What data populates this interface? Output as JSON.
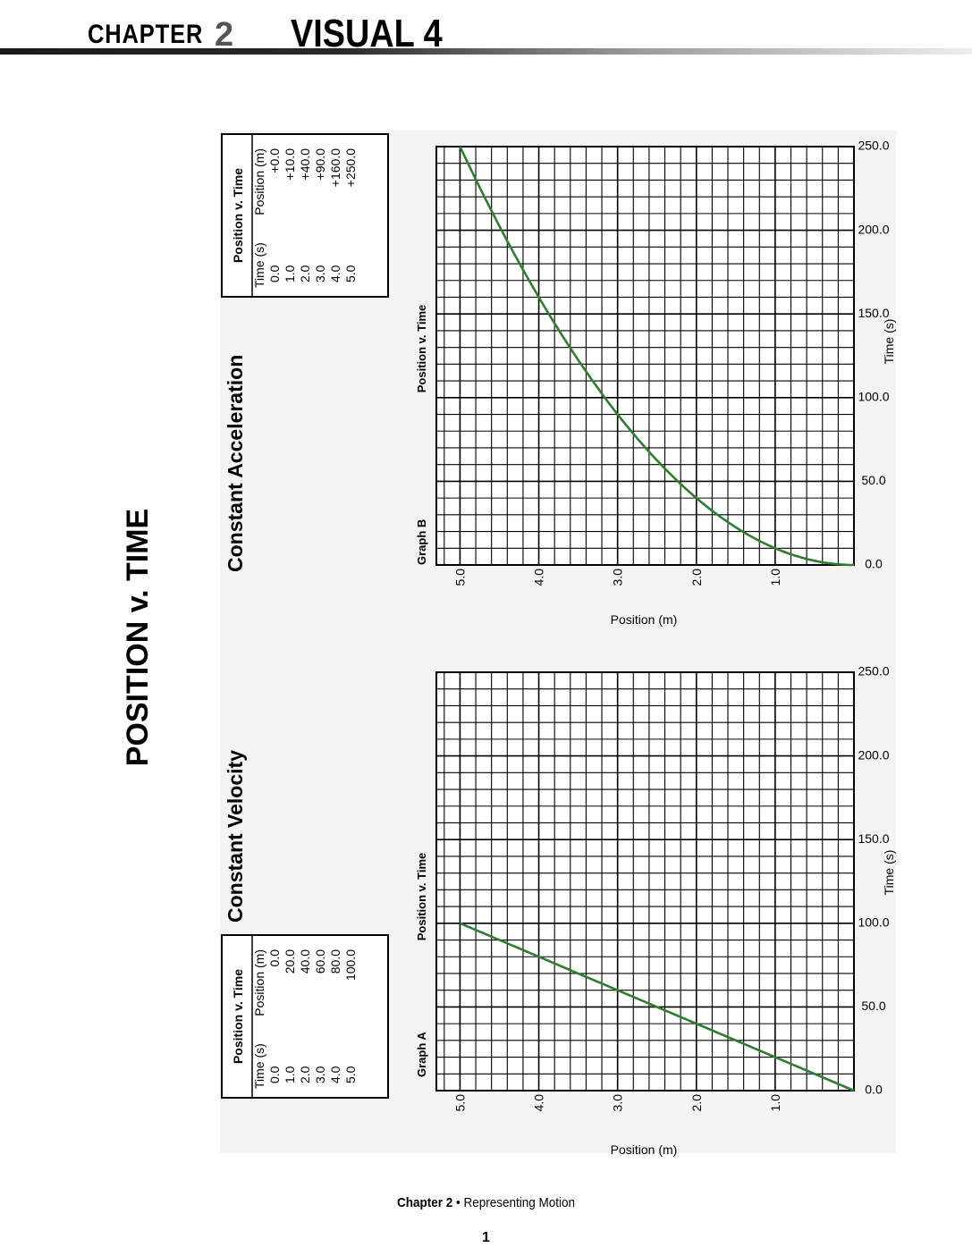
{
  "header": {
    "chapter_word": "CHAPTER",
    "chapter_num": "2",
    "visual": "VISUAL 4"
  },
  "page_title": "POSITION v. TIME",
  "footer": {
    "chapter": "Chapter 2",
    "bullet": "•",
    "topic": "Representing Motion",
    "page": "1"
  },
  "colors": {
    "curve": "#2e7d32",
    "panel_bg": "#f4f4f4",
    "grid": "#000000"
  },
  "chart_data": [
    {
      "type": "line",
      "section_title": "Constant Velocity",
      "title": "Position v. Time",
      "graph_label": "Graph A",
      "xlabel": "Time (s)",
      "ylabel": "Position (m)",
      "xlim": [
        0,
        5.3
      ],
      "ylim": [
        0,
        250
      ],
      "x_ticks": [
        "1.0",
        "2.0",
        "3.0",
        "4.0",
        "5.0"
      ],
      "y_ticks": [
        "0.0",
        "50.0",
        "100.0",
        "150.0",
        "200.0",
        "250.0"
      ],
      "x": [
        0,
        1,
        2,
        3,
        4,
        5
      ],
      "y": [
        0,
        20,
        40,
        60,
        80,
        100
      ],
      "table": {
        "title": "Position v. Time",
        "columns": [
          "Time (s)",
          "Position (m)"
        ],
        "rows": [
          [
            "0.0",
            "0.0"
          ],
          [
            "1.0",
            "20.0"
          ],
          [
            "2.0",
            "40.0"
          ],
          [
            "3.0",
            "60.0"
          ],
          [
            "4.0",
            "80.0"
          ],
          [
            "5.0",
            "100.0"
          ]
        ]
      }
    },
    {
      "type": "line",
      "section_title": "Constant Acceleration",
      "title": "Position v. Time",
      "graph_label": "Graph B",
      "xlabel": "Time (s)",
      "ylabel": "Position (m)",
      "xlim": [
        0,
        5.3
      ],
      "ylim": [
        0,
        250
      ],
      "x_ticks": [
        "1.0",
        "2.0",
        "3.0",
        "4.0",
        "5.0"
      ],
      "y_ticks": [
        "0.0",
        "50.0",
        "100.0",
        "150.0",
        "200.0",
        "250.0"
      ],
      "x": [
        0,
        1,
        2,
        3,
        4,
        5
      ],
      "y": [
        0,
        10,
        40,
        90,
        160,
        250
      ],
      "table": {
        "title": "Position v. Time",
        "columns": [
          "Time (s)",
          "Position (m)"
        ],
        "rows": [
          [
            "0.0",
            "+0.0"
          ],
          [
            "1.0",
            "+10.0"
          ],
          [
            "2.0",
            "+40.0"
          ],
          [
            "3.0",
            "+90.0"
          ],
          [
            "4.0",
            "+160.0"
          ],
          [
            "5.0",
            "+250.0"
          ]
        ]
      }
    }
  ]
}
